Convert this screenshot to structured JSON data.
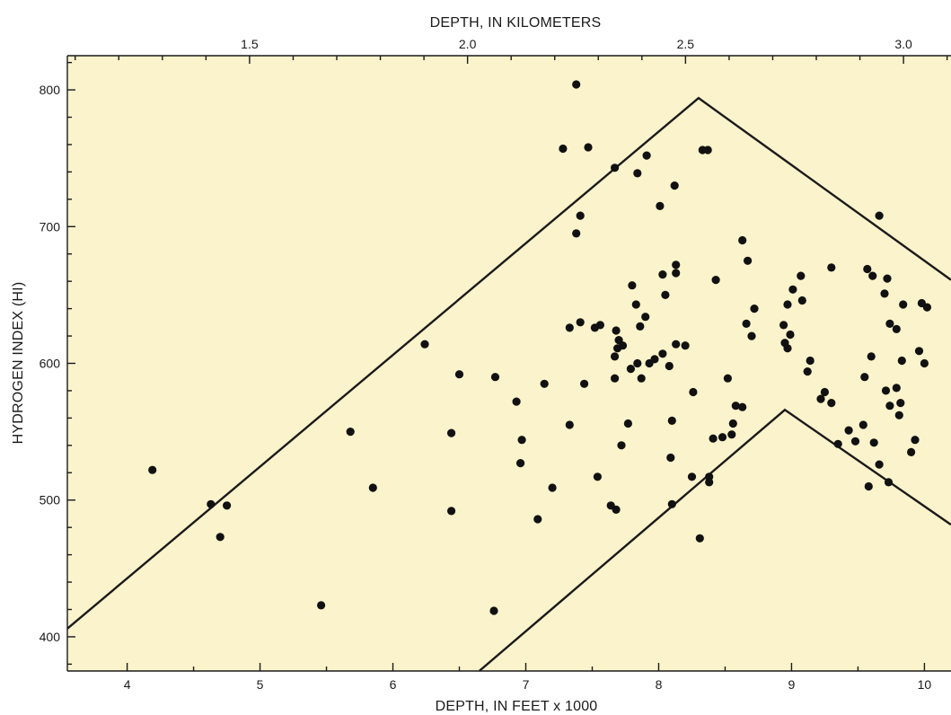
{
  "chart_data": {
    "type": "scatter",
    "xlabel": "DEPTH, IN FEET x 1000",
    "x2label": "DEPTH, IN KILOMETERS",
    "ylabel": "HYDROGEN INDEX (HI)",
    "xlim": [
      3.55,
      10.2
    ],
    "ylim": [
      375,
      825
    ],
    "x_ticks": [
      4,
      5,
      6,
      7,
      8,
      9,
      10
    ],
    "x_tick_labels": [
      "4",
      "5",
      "6",
      "7",
      "8",
      "9",
      "10"
    ],
    "x2_ticks": [
      1.5,
      2.0,
      2.5,
      3.0
    ],
    "x2_tick_labels": [
      "1.5",
      "2.0",
      "2.5",
      "3.0"
    ],
    "y_ticks": [
      400,
      500,
      600,
      700,
      800
    ],
    "y_tick_labels": [
      "400",
      "500",
      "600",
      "700",
      "800"
    ],
    "grid": false,
    "background_color": "#fbf3cb",
    "marker_color": "#111111",
    "envelope_lines": [
      {
        "name": "",
        "x": [
          3.55,
          8.3,
          10.2
        ],
        "y": [
          406,
          794,
          661
        ]
      },
      {
        "name": "",
        "x": [
          6.65,
          8.95,
          10.2
        ],
        "y": [
          375,
          566,
          482
        ]
      }
    ],
    "points": [
      [
        4.19,
        522
      ],
      [
        4.63,
        497
      ],
      [
        4.7,
        473
      ],
      [
        4.75,
        496
      ],
      [
        5.46,
        423
      ],
      [
        5.68,
        550
      ],
      [
        5.85,
        509
      ],
      [
        6.24,
        614
      ],
      [
        6.44,
        549
      ],
      [
        6.44,
        492
      ],
      [
        6.5,
        592
      ],
      [
        6.76,
        419
      ],
      [
        6.77,
        590
      ],
      [
        6.93,
        572
      ],
      [
        6.96,
        527
      ],
      [
        6.97,
        544
      ],
      [
        7.09,
        486
      ],
      [
        7.14,
        585
      ],
      [
        7.2,
        509
      ],
      [
        7.28,
        757
      ],
      [
        7.33,
        626
      ],
      [
        7.33,
        555
      ],
      [
        7.38,
        804
      ],
      [
        7.38,
        695
      ],
      [
        7.41,
        630
      ],
      [
        7.41,
        708
      ],
      [
        7.44,
        585
      ],
      [
        7.47,
        758
      ],
      [
        7.52,
        626
      ],
      [
        7.54,
        517
      ],
      [
        7.56,
        628
      ],
      [
        7.64,
        496
      ],
      [
        7.67,
        743
      ],
      [
        7.67,
        605
      ],
      [
        7.67,
        589
      ],
      [
        7.68,
        624
      ],
      [
        7.68,
        493
      ],
      [
        7.69,
        611
      ],
      [
        7.7,
        617
      ],
      [
        7.72,
        540
      ],
      [
        7.73,
        613
      ],
      [
        7.77,
        556
      ],
      [
        7.79,
        596
      ],
      [
        7.8,
        657
      ],
      [
        7.83,
        643
      ],
      [
        7.84,
        739
      ],
      [
        7.84,
        600
      ],
      [
        7.86,
        627
      ],
      [
        7.87,
        589
      ],
      [
        7.9,
        634
      ],
      [
        7.91,
        752
      ],
      [
        7.93,
        600
      ],
      [
        7.97,
        603
      ],
      [
        8.01,
        715
      ],
      [
        8.03,
        665
      ],
      [
        8.03,
        607
      ],
      [
        8.05,
        650
      ],
      [
        8.08,
        598
      ],
      [
        8.09,
        531
      ],
      [
        8.1,
        497
      ],
      [
        8.1,
        558
      ],
      [
        8.12,
        730
      ],
      [
        8.13,
        666
      ],
      [
        8.13,
        672
      ],
      [
        8.13,
        614
      ],
      [
        8.2,
        613
      ],
      [
        8.25,
        517
      ],
      [
        8.26,
        579
      ],
      [
        8.31,
        472
      ],
      [
        8.33,
        756
      ],
      [
        8.37,
        756
      ],
      [
        8.38,
        517
      ],
      [
        8.38,
        513
      ],
      [
        8.41,
        545
      ],
      [
        8.43,
        661
      ],
      [
        8.48,
        546
      ],
      [
        8.52,
        589
      ],
      [
        8.55,
        548
      ],
      [
        8.56,
        556
      ],
      [
        8.58,
        569
      ],
      [
        8.63,
        690
      ],
      [
        8.63,
        568
      ],
      [
        8.66,
        629
      ],
      [
        8.67,
        675
      ],
      [
        8.7,
        620
      ],
      [
        8.72,
        640
      ],
      [
        8.94,
        628
      ],
      [
        8.95,
        615
      ],
      [
        8.97,
        611
      ],
      [
        8.99,
        621
      ],
      [
        8.97,
        643
      ],
      [
        9.01,
        654
      ],
      [
        9.07,
        664
      ],
      [
        9.08,
        646
      ],
      [
        9.12,
        594
      ],
      [
        9.14,
        602
      ],
      [
        9.22,
        574
      ],
      [
        9.25,
        579
      ],
      [
        9.3,
        670
      ],
      [
        9.3,
        571
      ],
      [
        9.35,
        541
      ],
      [
        9.43,
        551
      ],
      [
        9.48,
        543
      ],
      [
        9.54,
        555
      ],
      [
        9.55,
        590
      ],
      [
        9.57,
        669
      ],
      [
        9.58,
        510
      ],
      [
        9.6,
        605
      ],
      [
        9.61,
        664
      ],
      [
        9.62,
        542
      ],
      [
        9.66,
        526
      ],
      [
        9.66,
        708
      ],
      [
        9.7,
        651
      ],
      [
        9.71,
        580
      ],
      [
        9.72,
        662
      ],
      [
        9.73,
        513
      ],
      [
        9.74,
        569
      ],
      [
        9.74,
        629
      ],
      [
        9.79,
        625
      ],
      [
        9.79,
        582
      ],
      [
        9.81,
        562
      ],
      [
        9.82,
        571
      ],
      [
        9.83,
        602
      ],
      [
        9.84,
        643
      ],
      [
        9.9,
        535
      ],
      [
        9.93,
        544
      ],
      [
        9.96,
        609
      ],
      [
        9.98,
        644
      ],
      [
        10.0,
        600
      ],
      [
        10.02,
        641
      ]
    ]
  }
}
